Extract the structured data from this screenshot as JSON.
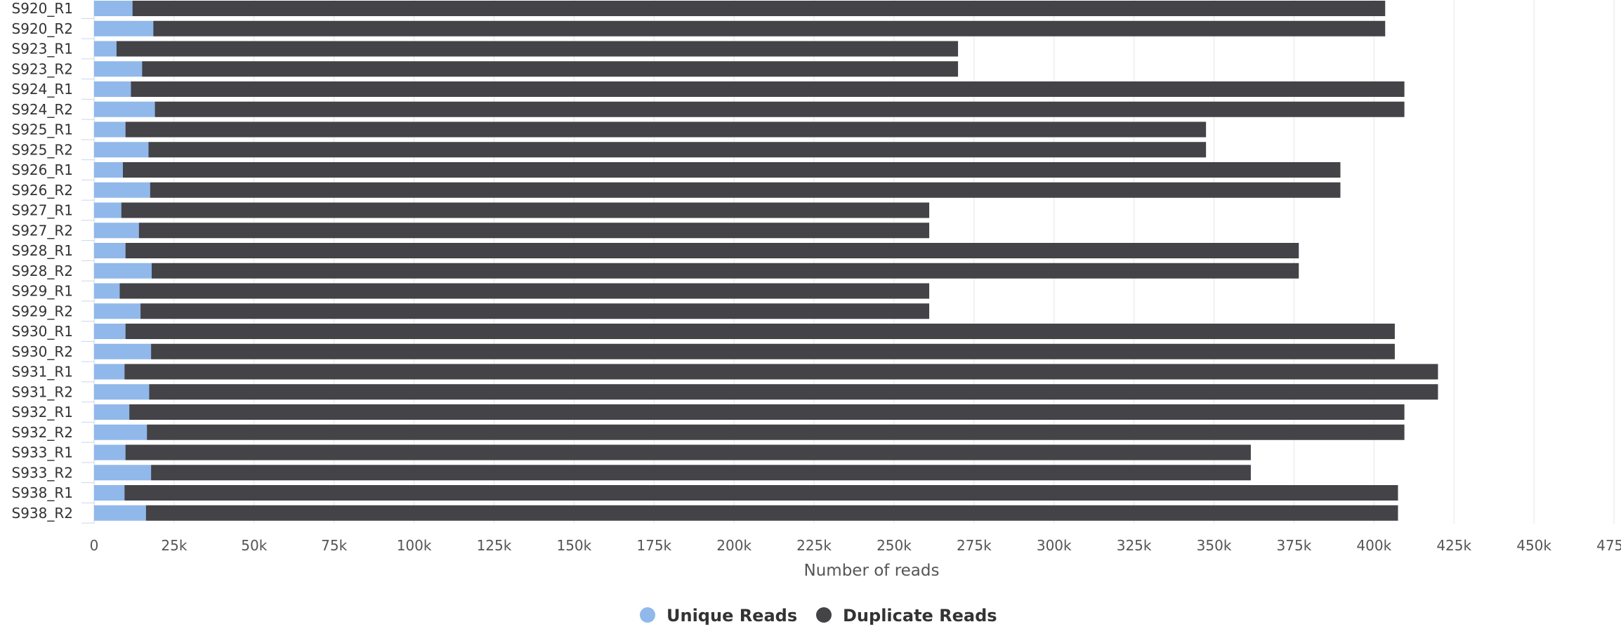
{
  "chart_data": {
    "type": "bar",
    "orientation": "horizontal",
    "stacked": true,
    "xlabel": "Number of reads",
    "xlim": [
      0,
      475000
    ],
    "x_ticks": [
      0,
      25000,
      50000,
      75000,
      100000,
      125000,
      150000,
      175000,
      200000,
      225000,
      250000,
      275000,
      300000,
      325000,
      350000,
      375000,
      400000,
      425000,
      450000,
      475000
    ],
    "x_tick_labels": [
      "0",
      "25k",
      "50k",
      "75k",
      "100k",
      "125k",
      "150k",
      "175k",
      "200k",
      "225k",
      "250k",
      "275k",
      "300k",
      "325k",
      "350k",
      "375k",
      "400k",
      "425k",
      "450k",
      "475k"
    ],
    "grid": true,
    "legend_position": "bottom-center",
    "categories": [
      "S920_R1",
      "S920_R2",
      "S923_R1",
      "S923_R2",
      "S924_R1",
      "S924_R2",
      "S925_R1",
      "S925_R2",
      "S926_R1",
      "S926_R2",
      "S927_R1",
      "S927_R2",
      "S928_R1",
      "S928_R2",
      "S929_R1",
      "S929_R2",
      "S930_R1",
      "S930_R2",
      "S931_R1",
      "S931_R2",
      "S932_R1",
      "S932_R2",
      "S933_R1",
      "S933_R2",
      "S938_R1",
      "S938_R2"
    ],
    "series": [
      {
        "name": "Unique Reads",
        "color": "#90b8ea",
        "values": [
          12000,
          18500,
          7000,
          15000,
          11500,
          19000,
          9800,
          17000,
          9000,
          17500,
          8500,
          14000,
          9800,
          18000,
          8000,
          14500,
          9800,
          17800,
          9500,
          17200,
          11000,
          16500,
          9800,
          17800,
          9500,
          16200
        ]
      },
      {
        "name": "Duplicate Reads",
        "color": "#434348",
        "values": [
          391500,
          385000,
          263000,
          255000,
          398000,
          390500,
          337700,
          330500,
          380500,
          372000,
          252500,
          247000,
          366700,
          358500,
          253000,
          246500,
          396700,
          388700,
          410500,
          402800,
          398500,
          393000,
          351700,
          343700,
          398000,
          391300
        ]
      }
    ]
  }
}
